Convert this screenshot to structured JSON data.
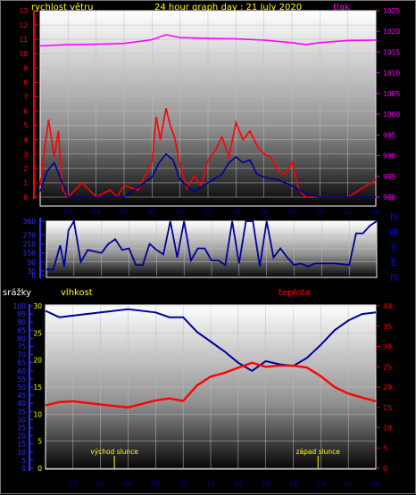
{
  "header": {
    "title": "24 hour graph day : 21 July 2020",
    "title_color": "#ffff00"
  },
  "chart_data": [
    {
      "type": "line",
      "name": "wind-and-pressure",
      "labels": {
        "left": "rychlost větru",
        "right": "tlak"
      },
      "colors": {
        "left_label": "#ffff00",
        "right_axis": "#ff00ff",
        "gust": "#ff0000",
        "average": "#000099",
        "pressure": "#ff00ff",
        "axis_left": "#ff0000"
      },
      "left_axis": {
        "min": 0,
        "max": 13,
        "ticks": [
          0,
          1,
          2,
          3,
          4,
          5,
          6,
          7,
          8,
          9,
          10,
          11,
          12,
          13
        ]
      },
      "right_axis": {
        "min": 980,
        "max": 1025,
        "ticks": [
          980,
          985,
          990,
          995,
          1000,
          1005,
          1010,
          1015,
          1020,
          1025
        ]
      },
      "x_ticks": [
        "02",
        "04",
        "06",
        "08",
        "10",
        "12",
        "14",
        "16",
        "18",
        "20",
        "22",
        "00"
      ],
      "pressure": {
        "x": [
          0,
          2,
          4,
          6,
          8,
          9,
          10,
          12,
          14,
          16,
          18,
          19,
          20,
          22,
          24
        ],
        "y": [
          1016.5,
          1016.8,
          1016.9,
          1017.1,
          1018.0,
          1019.2,
          1018.5,
          1018.3,
          1018.2,
          1017.9,
          1017.3,
          1016.8,
          1017.3,
          1017.8,
          1017.9
        ]
      },
      "wind_gust": {
        "x": [
          0,
          0.3,
          0.6,
          1.0,
          1.3,
          1.6,
          2.0,
          3.0,
          4.0,
          5.0,
          5.5,
          6.0,
          7.0,
          8.0,
          8.3,
          8.6,
          9.0,
          9.3,
          9.6,
          10.0,
          10.5,
          11.0,
          11.5,
          12.0,
          12.5,
          13.0,
          13.5,
          14.0,
          14.5,
          15.0,
          15.5,
          16.0,
          16.5,
          17.0,
          17.5,
          18.0,
          18.5,
          19.0,
          19.5,
          20,
          22,
          24
        ],
        "y": [
          0.8,
          3.2,
          5.4,
          2.8,
          4.6,
          0.5,
          0,
          1.0,
          0,
          0.5,
          0,
          0.8,
          0.5,
          2.5,
          5.6,
          4.0,
          6.2,
          5.0,
          4.2,
          2.2,
          0.6,
          1.5,
          0.8,
          2.6,
          3.2,
          4.2,
          2.8,
          5.2,
          4.0,
          4.6,
          3.6,
          3.0,
          2.8,
          1.8,
          1.6,
          2.4,
          0.5,
          0,
          0,
          0,
          0,
          1.2
        ]
      },
      "wind_average": {
        "x": [
          0,
          0.5,
          1.0,
          1.5,
          2,
          4,
          6,
          8,
          8.5,
          9,
          9.5,
          10,
          11,
          12,
          13,
          13.5,
          14,
          14.5,
          15,
          15.5,
          16,
          17,
          18,
          19,
          20,
          24
        ],
        "y": [
          0.4,
          1.8,
          2.4,
          1.2,
          0,
          0,
          0,
          1.4,
          2.4,
          3.0,
          2.6,
          1.2,
          0.4,
          1.0,
          1.6,
          2.4,
          2.8,
          2.4,
          2.6,
          1.6,
          1.4,
          1.2,
          0.8,
          0.2,
          0,
          0
        ]
      }
    },
    {
      "type": "line",
      "name": "wind-direction",
      "y_axis": {
        "min": 0,
        "max": 360,
        "ticks": [
          0,
          30,
          90,
          150,
          210,
          270,
          360
        ]
      },
      "direction_labels": [
        "N",
        "W",
        "S",
        "E",
        "N"
      ],
      "colors": {
        "line": "#000099",
        "labels": "#0000ff"
      },
      "x": [
        0,
        0.5,
        1.0,
        1.3,
        1.6,
        2.0,
        2.5,
        3.0,
        4.0,
        4.5,
        5.0,
        5.5,
        6.0,
        6.5,
        7.0,
        7.5,
        8.0,
        8.5,
        9.0,
        9.5,
        10.0,
        10.5,
        11.0,
        11.5,
        12.0,
        12.5,
        13.0,
        13.5,
        14.0,
        14.5,
        15.0,
        15.5,
        16.0,
        16.5,
        17.0,
        17.5,
        18.0,
        18.5,
        19.0,
        19.5,
        20,
        21,
        22,
        22.5,
        23,
        23.5,
        24
      ],
      "y": [
        40,
        40,
        200,
        60,
        300,
        360,
        90,
        170,
        150,
        210,
        240,
        170,
        180,
        70,
        70,
        210,
        170,
        140,
        360,
        120,
        360,
        100,
        180,
        180,
        100,
        100,
        70,
        360,
        80,
        360,
        360,
        60,
        360,
        120,
        180,
        120,
        70,
        80,
        60,
        80,
        80,
        80,
        70,
        280,
        280,
        330,
        360
      ]
    },
    {
      "type": "line",
      "name": "rain-humidity-temperature",
      "labels": {
        "rain": "srážky",
        "humidity": "vlhkost",
        "temperature": "teplota"
      },
      "colors": {
        "rain_label": "#ffffff",
        "humidity_label": "#ffff00",
        "temperature_label": "#ff0000",
        "humidity": "#000099",
        "temperature": "#ff0000",
        "rain_axis": "#3333ff"
      },
      "rain_axis": {
        "min": 0,
        "max": 100,
        "ticks": [
          0,
          5,
          10,
          15,
          20,
          25,
          30,
          35,
          40,
          45,
          50,
          55,
          60,
          65,
          70,
          75,
          80,
          85,
          90,
          95,
          100
        ]
      },
      "humidity_axis": {
        "min": 0,
        "max": 30,
        "ticks": [
          0,
          5,
          10,
          15,
          20,
          25,
          30
        ]
      },
      "temperature_axis": {
        "min": 0,
        "max": 40,
        "ticks": [
          0,
          5,
          10,
          15,
          20,
          25,
          30,
          35,
          40
        ]
      },
      "x_ticks": [
        "02",
        "04",
        "06",
        "08",
        "10",
        "12",
        "14",
        "16",
        "18",
        "20",
        "22",
        "00"
      ],
      "humidity": {
        "x": [
          0,
          1,
          2,
          4,
          6,
          8,
          9,
          10,
          11,
          12,
          13,
          14,
          15,
          16,
          17,
          18,
          19,
          20,
          21,
          22,
          23,
          24
        ],
        "y": [
          97,
          93,
          94,
          96,
          98,
          96,
          93,
          93,
          84,
          78,
          72,
          65,
          60,
          66,
          64,
          63,
          68,
          76,
          85,
          91,
          95,
          96
        ]
      },
      "temperature": {
        "x": [
          0,
          1,
          2,
          4,
          6,
          8,
          9,
          10,
          11,
          12,
          13,
          14,
          15,
          16,
          17,
          18,
          19,
          20,
          21,
          22,
          23,
          24
        ],
        "y": [
          15.5,
          16.3,
          16.5,
          15.7,
          15.0,
          16.7,
          17.2,
          16.6,
          20.4,
          22.6,
          23.5,
          24.8,
          26.0,
          25.0,
          25.3,
          25.3,
          24.8,
          22.7,
          20.0,
          18.4,
          17.4,
          16.5
        ]
      },
      "annotations": {
        "sunrise": "východ slunce",
        "sunset": "západ slunce",
        "sunrise_x": 5.0,
        "sunset_x": 19.8,
        "color": "#ffff00"
      }
    }
  ]
}
